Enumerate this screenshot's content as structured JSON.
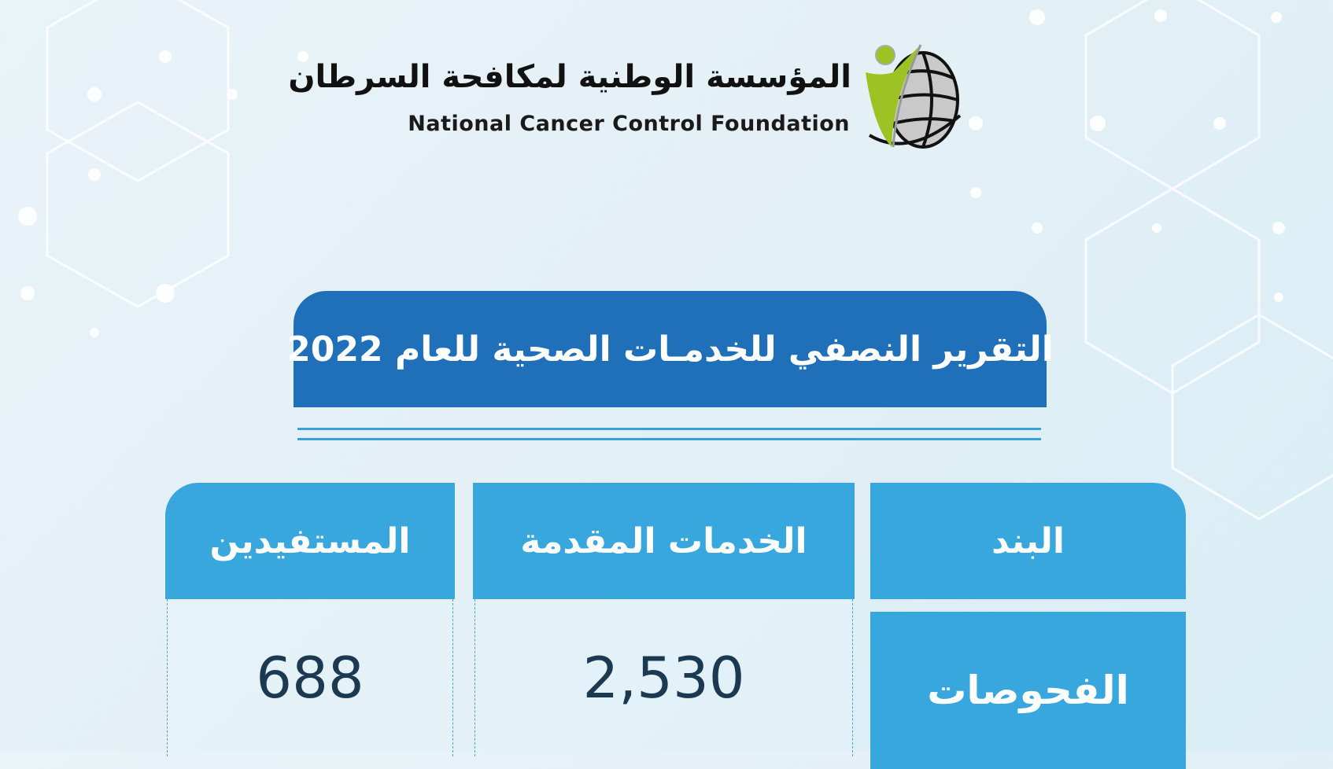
{
  "header": {
    "org_name_ar": "المؤسسة الوطنية لمكافحة السرطان",
    "org_name_en": "National Cancer Control Foundation",
    "logo_icon": "globe-person-logo"
  },
  "banner": {
    "title": "التقرير النصفي للخدمـات الصحية للعام 2022"
  },
  "table": {
    "columns": [
      "البند",
      "الخدمات المقدمة",
      "المستفيدين"
    ],
    "rows": [
      {
        "item": "الفحوصات",
        "services": "2,530",
        "beneficiaries": "688"
      }
    ]
  },
  "colors": {
    "banner": "#1f70b8",
    "header": "#37a7dd",
    "value_text": "#1b3a52",
    "logo_green": "#9cc323"
  }
}
